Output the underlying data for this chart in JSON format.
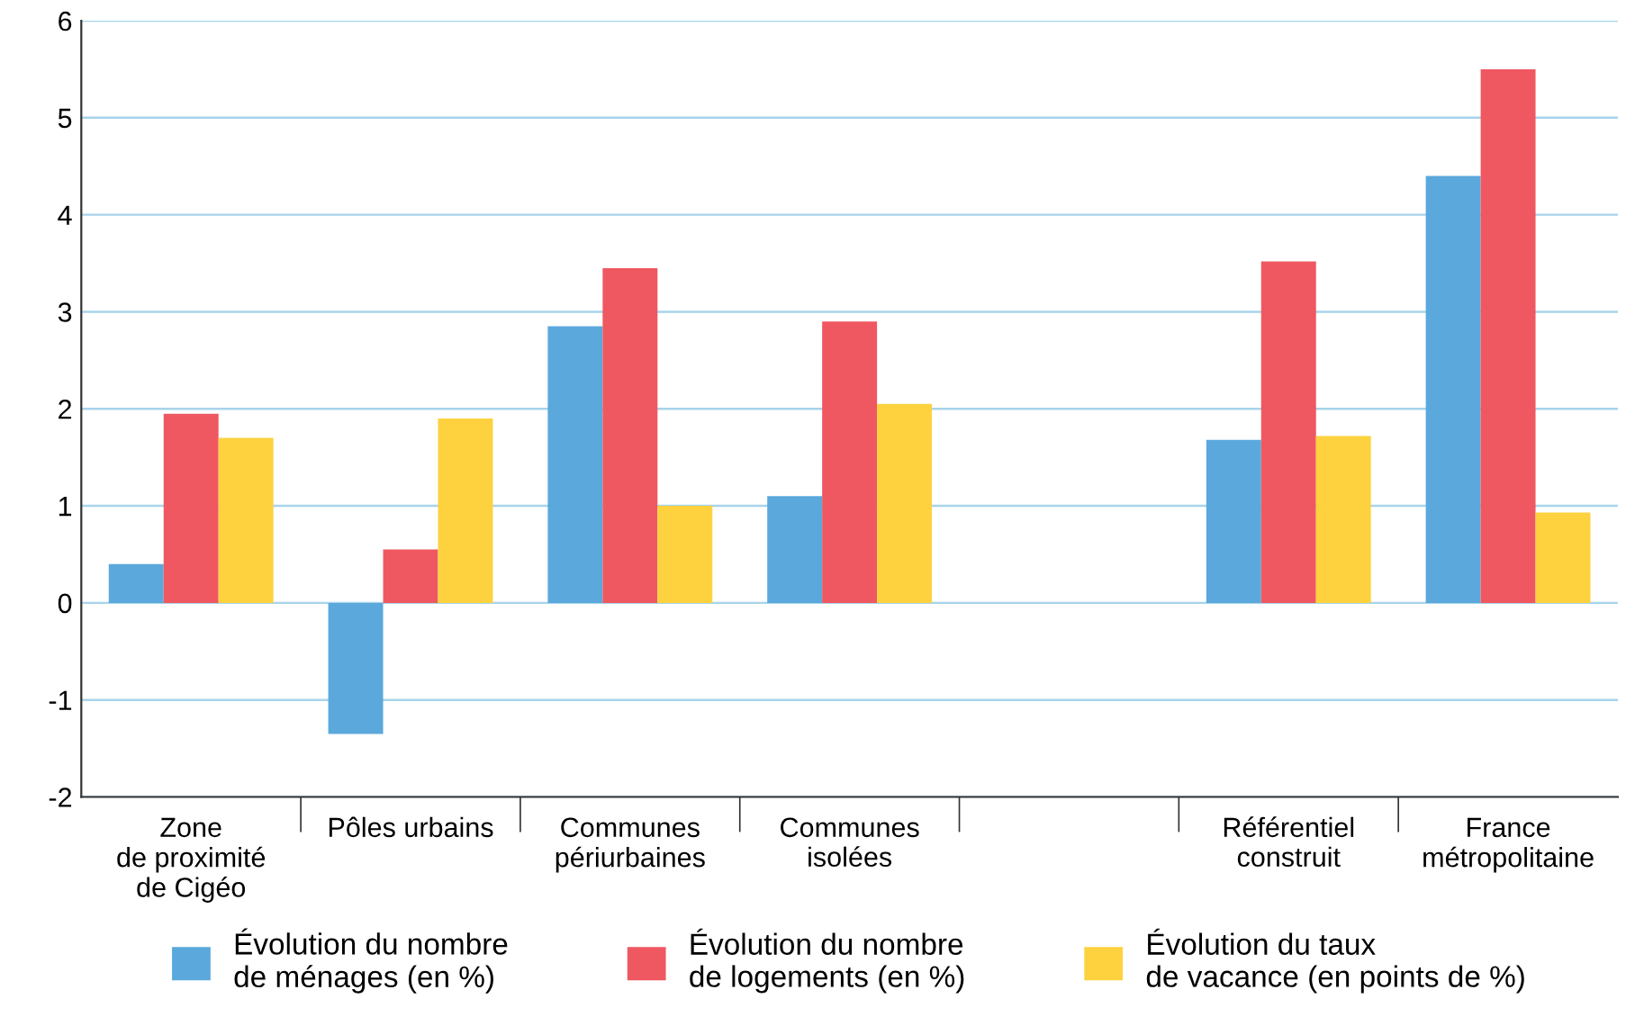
{
  "chart_data": {
    "type": "bar",
    "categories": [
      "Zone\nde proximité\nde Cigéo",
      "Pôles urbains",
      "Communes\npériurbaines",
      "Communes\nisolées",
      null,
      "Référentiel\nconstruit",
      "France\nmétropolitaine"
    ],
    "series": [
      {
        "name": "Évolution du nombre\nde ménages (en %)",
        "color": "#5aa8dc",
        "values": [
          0.4,
          -1.35,
          2.85,
          1.1,
          null,
          1.68,
          4.4
        ]
      },
      {
        "name": "Évolution du nombre\nde logements (en %)",
        "color": "#ef5860",
        "values": [
          1.95,
          0.55,
          3.45,
          2.9,
          null,
          3.52,
          5.5
        ]
      },
      {
        "name": "Évolution du taux\nde vacance (en points de %)",
        "color": "#fdd23e",
        "values": [
          1.7,
          1.9,
          1.0,
          2.05,
          null,
          1.72,
          0.93
        ]
      }
    ],
    "ylim": [
      -2,
      6
    ],
    "yticks": [
      -2,
      -1,
      0,
      1,
      2,
      3,
      4,
      5,
      6
    ],
    "grid": "y",
    "legend": "bottom"
  }
}
